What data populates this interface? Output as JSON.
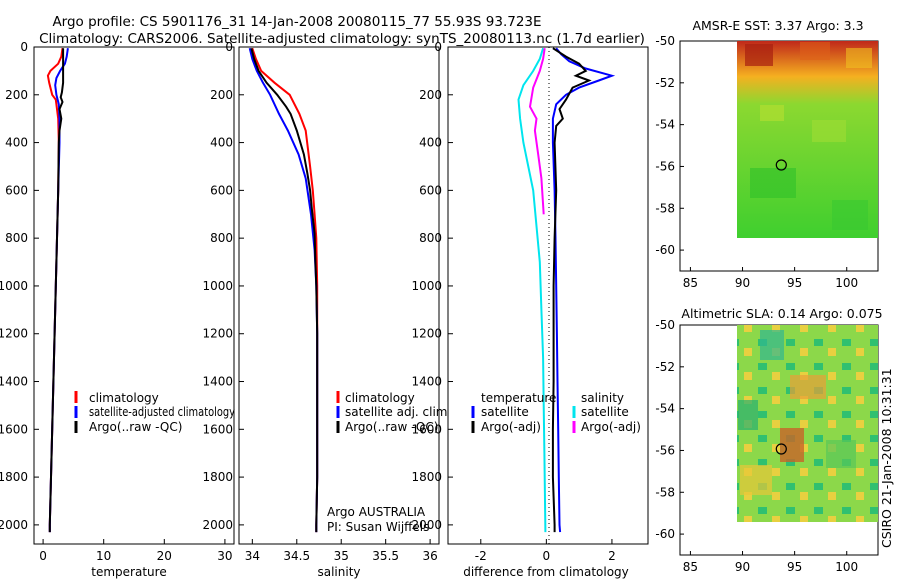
{
  "title": {
    "line1": "Argo profile: CS 5901176_31 14-Jan-2008 20080115_77 55.93S 93.723E",
    "line2": "Climatology: CARS2006. Satellite-adjusted climatology: synTS_20080113.nc (1.7d earlier)"
  },
  "colors": {
    "red": "#ff0000",
    "blue": "#0000ff",
    "black": "#000000",
    "cyan": "#00e5ee",
    "magenta": "#ff00ff"
  },
  "stamp": "CSIRO 21-Jan-2008 10:31:31",
  "chart_data": [
    {
      "id": "temperature",
      "type": "line",
      "xlabel": "temperature",
      "xlim": [
        -1.5,
        31.5
      ],
      "ylim": [
        0,
        2080
      ],
      "xticks": [
        0,
        10,
        20,
        30
      ],
      "yticks": [
        0,
        200,
        400,
        600,
        800,
        1000,
        1200,
        1400,
        1600,
        1800,
        2000
      ],
      "legend": [
        "climatology",
        "satellite-adjusted climatology",
        "Argo(..raw -QC)"
      ],
      "series": [
        {
          "name": "climatology",
          "color": "red",
          "points": [
            [
              3.2,
              5
            ],
            [
              3.0,
              40
            ],
            [
              2.5,
              70
            ],
            [
              1.2,
              100
            ],
            [
              0.8,
              120
            ],
            [
              1.0,
              150
            ],
            [
              1.5,
              200
            ],
            [
              2.1,
              220
            ],
            [
              2.5,
              300
            ],
            [
              2.6,
              400
            ],
            [
              2.5,
              600
            ],
            [
              2.3,
              800
            ],
            [
              2.1,
              1000
            ],
            [
              1.9,
              1200
            ],
            [
              1.7,
              1400
            ],
            [
              1.5,
              1600
            ],
            [
              1.3,
              1800
            ],
            [
              1.1,
              2000
            ],
            [
              1.1,
              2030
            ]
          ]
        },
        {
          "name": "satellite-adjusted climatology",
          "color": "blue",
          "points": [
            [
              4.1,
              5
            ],
            [
              3.9,
              40
            ],
            [
              3.6,
              70
            ],
            [
              2.8,
              100
            ],
            [
              2.2,
              130
            ],
            [
              2.0,
              160
            ],
            [
              2.2,
              200
            ],
            [
              2.6,
              240
            ],
            [
              2.7,
              300
            ],
            [
              2.7,
              400
            ],
            [
              2.5,
              600
            ],
            [
              2.3,
              800
            ],
            [
              2.1,
              1000
            ],
            [
              1.9,
              1200
            ],
            [
              1.7,
              1400
            ],
            [
              1.5,
              1600
            ],
            [
              1.3,
              1800
            ],
            [
              1.1,
              2000
            ],
            [
              1.1,
              2030
            ]
          ]
        },
        {
          "name": "Argo(..raw -QC)",
          "color": "black",
          "points": [
            [
              3.3,
              5
            ],
            [
              3.3,
              60
            ],
            [
              3.3,
              100
            ],
            [
              3.3,
              150
            ],
            [
              3.1,
              190
            ],
            [
              2.9,
              210
            ],
            [
              3.2,
              230
            ],
            [
              2.7,
              260
            ],
            [
              3.0,
              300
            ],
            [
              2.7,
              350
            ],
            [
              2.6,
              400
            ],
            [
              2.5,
              600
            ],
            [
              2.3,
              800
            ],
            [
              2.1,
              1000
            ],
            [
              1.9,
              1200
            ],
            [
              1.7,
              1400
            ],
            [
              1.5,
              1600
            ],
            [
              1.3,
              1800
            ],
            [
              1.1,
              2000
            ],
            [
              1.1,
              2030
            ]
          ]
        }
      ]
    },
    {
      "id": "salinity",
      "type": "line",
      "xlabel": "salinity",
      "xlim": [
        33.85,
        36.1
      ],
      "ylim": [
        0,
        2080
      ],
      "xticks": [
        34,
        34.5,
        35,
        35.5,
        36
      ],
      "yticks": [
        0,
        200,
        400,
        600,
        800,
        1000,
        1200,
        1400,
        1600,
        1800,
        2000
      ],
      "legend": [
        "climatology",
        "satellite adj. clim.",
        "Argo(..raw -QC)"
      ],
      "annotation": [
        "Argo AUSTRALIA",
        "PI: Susan Wijffels"
      ],
      "series": [
        {
          "name": "climatology",
          "color": "red",
          "points": [
            [
              34.0,
              5
            ],
            [
              34.04,
              50
            ],
            [
              34.1,
              100
            ],
            [
              34.25,
              150
            ],
            [
              34.42,
              200
            ],
            [
              34.53,
              280
            ],
            [
              34.6,
              350
            ],
            [
              34.65,
              500
            ],
            [
              34.68,
              600
            ],
            [
              34.7,
              700
            ],
            [
              34.72,
              800
            ],
            [
              34.73,
              1000
            ],
            [
              34.73,
              1200
            ],
            [
              34.73,
              1400
            ],
            [
              34.73,
              1600
            ],
            [
              34.73,
              1800
            ],
            [
              34.72,
              2000
            ],
            [
              34.72,
              2030
            ]
          ]
        },
        {
          "name": "satellite adj. clim.",
          "color": "blue",
          "points": [
            [
              33.97,
              5
            ],
            [
              34.0,
              50
            ],
            [
              34.05,
              100
            ],
            [
              34.12,
              150
            ],
            [
              34.2,
              200
            ],
            [
              34.3,
              280
            ],
            [
              34.4,
              350
            ],
            [
              34.52,
              450
            ],
            [
              34.6,
              550
            ],
            [
              34.66,
              700
            ],
            [
              34.7,
              850
            ],
            [
              34.72,
              1000
            ],
            [
              34.73,
              1200
            ],
            [
              34.73,
              1400
            ],
            [
              34.73,
              1600
            ],
            [
              34.73,
              1800
            ],
            [
              34.72,
              2000
            ],
            [
              34.72,
              2030
            ]
          ]
        },
        {
          "name": "Argo(..raw -QC)",
          "color": "black",
          "points": [
            [
              33.99,
              5
            ],
            [
              34.02,
              50
            ],
            [
              34.07,
              100
            ],
            [
              34.16,
              150
            ],
            [
              34.28,
              200
            ],
            [
              34.38,
              250
            ],
            [
              34.43,
              280
            ],
            [
              34.5,
              350
            ],
            [
              34.58,
              450
            ],
            [
              34.62,
              530
            ],
            [
              34.65,
              600
            ],
            [
              34.67,
              680
            ],
            [
              34.7,
              780
            ],
            [
              34.71,
              900
            ],
            [
              34.72,
              1000
            ],
            [
              34.73,
              1200
            ],
            [
              34.73,
              1400
            ],
            [
              34.73,
              1600
            ],
            [
              34.73,
              1800
            ],
            [
              34.72,
              2000
            ],
            [
              34.72,
              2030
            ]
          ]
        }
      ]
    },
    {
      "id": "difference",
      "type": "line",
      "xlabel": "difference from climatology",
      "xlim": [
        -3,
        3.1
      ],
      "ylim": [
        0,
        2080
      ],
      "xticks": [
        -2,
        0,
        2
      ],
      "yticks": [
        0,
        200,
        400,
        600,
        800,
        1000,
        1200,
        1400,
        1600,
        1800,
        2000
      ],
      "legend_temperature": [
        "temperature",
        "satellite",
        "Argo(-adj)"
      ],
      "legend_salinity": [
        "salinity",
        "satellite",
        "Argo(-adj)"
      ],
      "series": [
        {
          "name": "temperature satellite",
          "color": "blue",
          "points": [
            [
              0.3,
              5
            ],
            [
              0.45,
              30
            ],
            [
              0.7,
              60
            ],
            [
              1.2,
              90
            ],
            [
              2.0,
              120
            ],
            [
              1.6,
              140
            ],
            [
              1.0,
              170
            ],
            [
              0.6,
              200
            ],
            [
              0.3,
              240
            ],
            [
              0.2,
              300
            ],
            [
              0.2,
              400
            ],
            [
              0.25,
              600
            ],
            [
              0.28,
              800
            ],
            [
              0.3,
              1000
            ],
            [
              0.32,
              1200
            ],
            [
              0.34,
              1400
            ],
            [
              0.36,
              1600
            ],
            [
              0.38,
              1800
            ],
            [
              0.4,
              2000
            ],
            [
              0.42,
              2030
            ]
          ]
        },
        {
          "name": "temperature Argo(-adj)",
          "color": "black",
          "points": [
            [
              0.2,
              5
            ],
            [
              0.6,
              40
            ],
            [
              1.0,
              70
            ],
            [
              1.2,
              100
            ],
            [
              0.9,
              120
            ],
            [
              1.3,
              140
            ],
            [
              0.8,
              170
            ],
            [
              0.6,
              220
            ],
            [
              0.4,
              260
            ],
            [
              0.5,
              300
            ],
            [
              0.3,
              330
            ],
            [
              0.25,
              400
            ],
            [
              0.3,
              600
            ],
            [
              0.25,
              800
            ],
            [
              0.22,
              1000
            ],
            [
              0.22,
              1200
            ],
            [
              0.22,
              1400
            ],
            [
              0.2,
              1600
            ],
            [
              0.2,
              1800
            ],
            [
              0.25,
              2000
            ],
            [
              0.25,
              2030
            ]
          ]
        },
        {
          "name": "salinity satellite",
          "color": "cyan",
          "points": [
            [
              -0.1,
              5
            ],
            [
              -0.2,
              50
            ],
            [
              -0.4,
              100
            ],
            [
              -0.7,
              160
            ],
            [
              -0.85,
              220
            ],
            [
              -0.8,
              300
            ],
            [
              -0.7,
              400
            ],
            [
              -0.55,
              500
            ],
            [
              -0.4,
              600
            ],
            [
              -0.3,
              750
            ],
            [
              -0.2,
              900
            ],
            [
              -0.15,
              1100
            ],
            [
              -0.1,
              1300
            ],
            [
              -0.08,
              1500
            ],
            [
              -0.06,
              1700
            ],
            [
              -0.04,
              1900
            ],
            [
              -0.03,
              2030
            ]
          ]
        },
        {
          "name": "salinity Argo(-adj)",
          "color": "magenta",
          "points": [
            [
              -0.05,
              5
            ],
            [
              -0.1,
              50
            ],
            [
              -0.2,
              100
            ],
            [
              -0.4,
              170
            ],
            [
              -0.5,
              250
            ],
            [
              -0.3,
              300
            ],
            [
              -0.35,
              350
            ],
            [
              -0.25,
              450
            ],
            [
              -0.15,
              550
            ],
            [
              -0.08,
              700
            ]
          ]
        }
      ]
    },
    {
      "id": "sst-map",
      "type": "heatmap",
      "title": "AMSR-E SST: 3.37 Argo: 3.3",
      "xlim": [
        84,
        103
      ],
      "ylim": [
        -61,
        -50
      ],
      "xticks": [
        85,
        90,
        95,
        100
      ],
      "yticks": [
        -50,
        -52,
        -54,
        -56,
        -58,
        -60
      ],
      "data_extent": {
        "lon": [
          90,
          103
        ],
        "lat": [
          -60,
          -50
        ]
      },
      "argo_position": {
        "lon": 93.723,
        "lat": -55.93
      }
    },
    {
      "id": "sla-map",
      "type": "heatmap",
      "title": "Altimetric SLA: 0.14 Argo: 0.075",
      "xlim": [
        84,
        103
      ],
      "ylim": [
        -61,
        -50
      ],
      "xticks": [
        85,
        90,
        95,
        100
      ],
      "yticks": [
        -50,
        -52,
        -54,
        -56,
        -58,
        -60
      ],
      "data_extent": {
        "lon": [
          90,
          103
        ],
        "lat": [
          -60,
          -50
        ]
      },
      "argo_position": {
        "lon": 93.723,
        "lat": -55.93
      }
    }
  ]
}
